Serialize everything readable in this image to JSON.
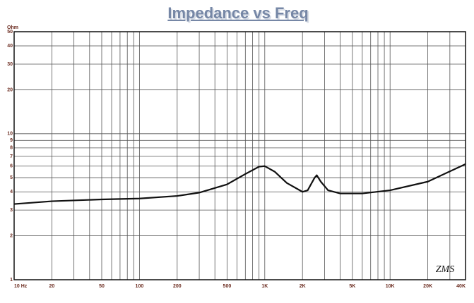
{
  "chart_data": {
    "type": "line",
    "title": "Impedance vs Freq",
    "y_unit": "Ohm",
    "signature": "ZMS",
    "x": [
      10,
      20,
      50,
      100,
      200,
      300,
      500,
      700,
      900,
      1000,
      1200,
      1500,
      2000,
      2200,
      2500,
      2600,
      2800,
      3200,
      4000,
      6000,
      10000,
      20000,
      40000
    ],
    "values": [
      3.3,
      3.45,
      3.55,
      3.6,
      3.75,
      3.95,
      4.5,
      5.3,
      5.95,
      6.0,
      5.5,
      4.6,
      4.0,
      4.1,
      5.0,
      5.2,
      4.7,
      4.1,
      3.9,
      3.9,
      4.1,
      4.7,
      6.2
    ],
    "color": "#111111",
    "xlog": true,
    "ylog": true,
    "xlim": [
      10,
      40000
    ],
    "ylim": [
      1,
      50
    ],
    "xticks": [
      {
        "value": 10,
        "label": "10 Hz"
      },
      20,
      50,
      100,
      200,
      500,
      {
        "value": 1000,
        "label": "1K"
      },
      {
        "value": 2000,
        "label": "2K"
      },
      {
        "value": 5000,
        "label": "5K"
      },
      {
        "value": 10000,
        "label": "10K"
      },
      {
        "value": 20000,
        "label": "20K"
      },
      {
        "value": 40000,
        "label": "40K"
      }
    ],
    "xgrid_minor": [
      30,
      40,
      60,
      70,
      80,
      90,
      300,
      400,
      600,
      700,
      800,
      900,
      3000,
      4000,
      6000,
      7000,
      8000,
      9000,
      30000
    ],
    "yticks": [
      1,
      2,
      3,
      4,
      5,
      6,
      7,
      8,
      9,
      10,
      20,
      30,
      40,
      50
    ],
    "grid": true
  }
}
